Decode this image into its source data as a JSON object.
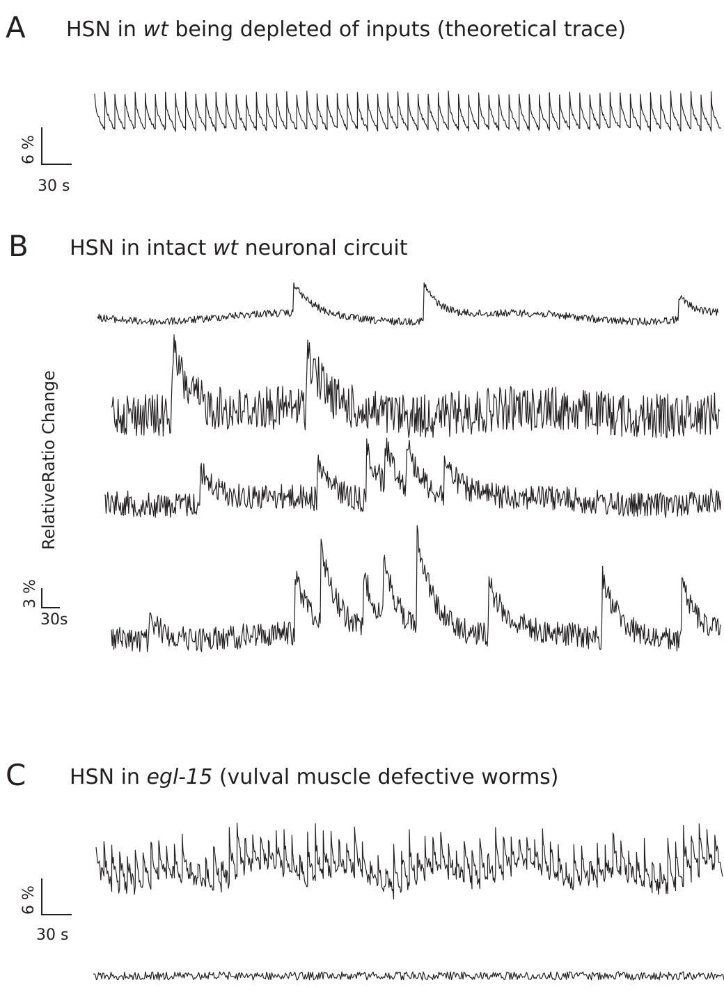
{
  "panels": [
    {
      "letter": "A",
      "title_pre": "HSN in ",
      "title_italic": "wt",
      "title_post": " being depleted of inputs (theoretical trace)",
      "scalebar": {
        "y_label": "6 %",
        "x_label": "30 s"
      }
    },
    {
      "letter": "B",
      "title_pre": "HSN in intact ",
      "title_italic": "wt",
      "title_post": " neuronal circuit",
      "ylabel": "RelativeRatio Change",
      "scalebar": {
        "y_label": "3 %",
        "x_label": "30s"
      }
    },
    {
      "letter": "C",
      "title_pre": "HSN in ",
      "title_italic": "egl-15",
      "title_post": " (vulval muscle defective worms)",
      "scalebar": {
        "y_label": "6 %",
        "x_label": "30 s"
      }
    }
  ],
  "chart_data": [
    {
      "type": "line",
      "panel": "A",
      "traces": [
        {
          "kind": "periodic",
          "spikes": 62,
          "amplitude_pct": 5.5,
          "noise_pct": 0.3
        }
      ]
    },
    {
      "type": "line",
      "panel": "B",
      "traces": [
        {
          "spike_fractions": [
            0.315,
            0.525,
            0.935
          ],
          "amplitudes_pct": [
            2.5,
            3.0,
            2.0
          ],
          "noise_pct": 0.3
        },
        {
          "spike_fractions": [
            0.1,
            0.32
          ],
          "amplitudes_pct": [
            6.0,
            5.5
          ],
          "noise_pct": 2.0
        },
        {
          "spike_fractions": [
            0.155,
            0.345,
            0.425,
            0.455,
            0.49,
            0.55
          ],
          "amplitudes_pct": [
            3.5,
            3.5,
            5.5,
            4.5,
            4.5,
            3.8
          ],
          "noise_pct": 1.3
        },
        {
          "spike_fractions": [
            0.063,
            0.3,
            0.343,
            0.413,
            0.446,
            0.5,
            0.618,
            0.805,
            0.935
          ],
          "amplitudes_pct": [
            1.5,
            4.3,
            5.4,
            4.3,
            4.3,
            7.3,
            3.8,
            4.5,
            4.0
          ],
          "noise_pct": 0.9
        }
      ]
    },
    {
      "type": "line",
      "panel": "C",
      "traces": [
        {
          "kind": "irregular",
          "spikes": 80,
          "amplitude_pct": 6.5,
          "noise_pct": 1.0
        },
        {
          "kind": "flat",
          "noise_pct": 1.0
        }
      ]
    }
  ]
}
